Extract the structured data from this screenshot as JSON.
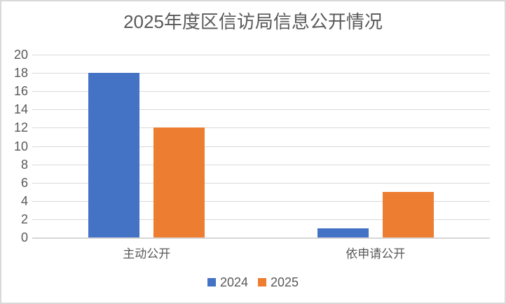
{
  "chart_data": {
    "type": "bar",
    "title": "2025年度区信访局信息公开情况",
    "categories": [
      "主动公开",
      "依申请公开"
    ],
    "series": [
      {
        "name": "2024",
        "color": "#4472C4",
        "values": [
          18,
          1
        ]
      },
      {
        "name": "2025",
        "color": "#ED7D31",
        "values": [
          12,
          5
        ]
      }
    ],
    "xlabel": "",
    "ylabel": "",
    "ylim": [
      0,
      20
    ],
    "ytick_step": 2,
    "grid": "horizontal",
    "legend_position": "bottom"
  },
  "colors": {
    "text": "#595959",
    "gridline": "#d9d9d9",
    "axis_line": "#d6d6d6",
    "frame_border": "#d9d9d9",
    "background": "#ffffff"
  }
}
